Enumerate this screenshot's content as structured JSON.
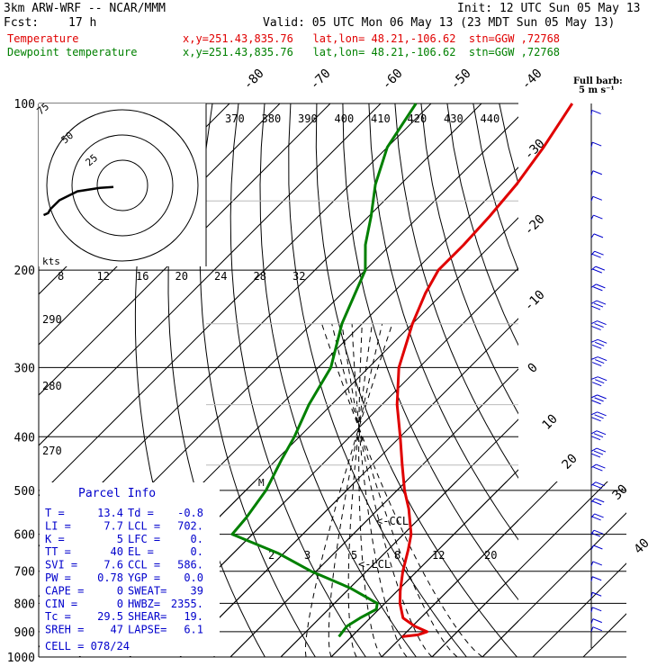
{
  "header": {
    "model": "3km ARW-WRF -- NCAR/MMM",
    "init": "Init: 12 UTC Sun 05 May 13",
    "fcst_label": "Fcst:",
    "fcst_value": "17 h",
    "valid": "Valid: 05 UTC Mon 06 May 13 (23 MDT Sun 05 May 13)",
    "temperature_label": "Temperature",
    "dewpoint_label": "Dewpoint temperature",
    "temperature_loc": "x,y=251.43,835.76   lat,lon= 48.21,-106.62  stn=GGW ,72768",
    "dewpoint_loc": "x,y=251.43,835.76   lat,lon= 48.21,-106.62  stn=GGW ,72768"
  },
  "colors": {
    "temperature": "#e00000",
    "dewpoint": "#008000",
    "parcel_text": "#0000cc",
    "grid": "#000000"
  },
  "wind_legend": {
    "title": "Full barb:",
    "value": "5 m s⁻¹"
  },
  "hodograph": {
    "rings": [
      "25",
      "50",
      "75"
    ],
    "units": "kts",
    "trace": [
      [
        8,
        -3
      ],
      [
        20,
        -5
      ],
      [
        40,
        -12
      ],
      [
        56,
        -30
      ],
      [
        64,
        -48
      ],
      [
        66,
        -56
      ],
      [
        70,
        -60
      ]
    ]
  },
  "parcel_info": {
    "title": "Parcel Info",
    "rows": [
      [
        "T   =",
        "13.4",
        "Td =",
        "-0.8"
      ],
      [
        "LI  =",
        "7.7",
        "LCL =",
        "702."
      ],
      [
        "K   =",
        "5",
        "LFC =",
        "0."
      ],
      [
        "TT  =",
        "40",
        "EL  =",
        "0."
      ],
      [
        "SVI =",
        "7.6",
        "CCL =",
        "586."
      ],
      [
        "PW  =",
        "0.78",
        "YGP =",
        "0.0"
      ],
      [
        "CAPE =",
        "0",
        "SWEAT=",
        "39"
      ],
      [
        "CIN  =",
        "0",
        "HWBZ=",
        "2355."
      ],
      [
        "Tc  =",
        "29.5",
        "SHEAR=",
        "19."
      ],
      [
        "SREH =",
        "47",
        "LAPSE=",
        "6.1"
      ]
    ],
    "cell": "CELL = 078/24"
  },
  "annotations": {
    "ccl": "<-CCL",
    "lcl": "<-LCL",
    "marker": "M"
  },
  "chart_data": {
    "type": "line",
    "y_axis": "Pressure (hPa)",
    "y_scale": "log",
    "ylim": [
      1000,
      100
    ],
    "pressure_levels": [
      "100",
      "200",
      "300",
      "400",
      "500",
      "600",
      "700",
      "800",
      "900",
      "1000"
    ],
    "isotherm_labels": [
      "-80",
      "-70",
      "-60",
      "-50",
      "-40",
      "-30",
      "-20",
      "-10",
      "0",
      "10",
      "20",
      "30",
      "40"
    ],
    "theta_labels": [
      "370",
      "380",
      "390",
      "400",
      "410",
      "420",
      "430",
      "440"
    ],
    "theta_labels_lower": [
      "290",
      "280",
      "270"
    ],
    "mixing_ratio_labels": [
      "8",
      "12",
      "16",
      "20",
      "24",
      "28",
      "32"
    ],
    "mixing_ratio_labels_low": [
      "2",
      "3",
      "5",
      "8",
      "12",
      "20"
    ],
    "series": [
      {
        "name": "Temperature",
        "points": [
          [
            919,
            10.0
          ],
          [
            912,
            12.8
          ],
          [
            900,
            14.0
          ],
          [
            880,
            10.5
          ],
          [
            850,
            6.5
          ],
          [
            800,
            3.0
          ],
          [
            760,
            0.6
          ],
          [
            700,
            -2.8
          ],
          [
            640,
            -6.0
          ],
          [
            600,
            -8.5
          ],
          [
            540,
            -14.0
          ],
          [
            500,
            -18.5
          ],
          [
            450,
            -24.0
          ],
          [
            400,
            -30.0
          ],
          [
            350,
            -37.0
          ],
          [
            300,
            -44.0
          ],
          [
            250,
            -50.0
          ],
          [
            220,
            -53.5
          ],
          [
            200,
            -55.5
          ],
          [
            180,
            -55.5
          ],
          [
            160,
            -56.0
          ],
          [
            140,
            -57.0
          ],
          [
            120,
            -59.0
          ],
          [
            100,
            -62.0
          ]
        ]
      },
      {
        "name": "Dewpoint temperature",
        "points": [
          [
            919,
            -2.5
          ],
          [
            880,
            -3.0
          ],
          [
            850,
            -2.0
          ],
          [
            820,
            -0.5
          ],
          [
            800,
            -1.5
          ],
          [
            750,
            -10.0
          ],
          [
            700,
            -21.0
          ],
          [
            650,
            -31.0
          ],
          [
            600,
            -44.0
          ],
          [
            560,
            -44.5
          ],
          [
            500,
            -46.0
          ],
          [
            440,
            -49.0
          ],
          [
            400,
            -51.0
          ],
          [
            350,
            -54.5
          ],
          [
            300,
            -57.5
          ],
          [
            250,
            -64.0
          ],
          [
            200,
            -70.0
          ],
          [
            180,
            -75.0
          ],
          [
            160,
            -79.5
          ],
          [
            140,
            -85.0
          ],
          [
            120,
            -90.0
          ],
          [
            100,
            -93.0
          ]
        ]
      }
    ],
    "wind_barbs": [
      {
        "p": 105,
        "u": 1,
        "v": 2
      },
      {
        "p": 120,
        "u": 2,
        "v": 2
      },
      {
        "p": 135,
        "u": 3,
        "v": 3
      },
      {
        "p": 150,
        "u": 3,
        "v": 5
      },
      {
        "p": 162,
        "u": 4,
        "v": 6
      },
      {
        "p": 175,
        "u": 5,
        "v": 7
      },
      {
        "p": 188,
        "u": 6,
        "v": 8
      },
      {
        "p": 200,
        "u": 8,
        "v": 10
      },
      {
        "p": 215,
        "u": 9,
        "v": 12
      },
      {
        "p": 230,
        "u": 10,
        "v": 13
      },
      {
        "p": 250,
        "u": 11,
        "v": 14
      },
      {
        "p": 270,
        "u": 12,
        "v": 15
      },
      {
        "p": 290,
        "u": 12,
        "v": 16
      },
      {
        "p": 315,
        "u": 12,
        "v": 16
      },
      {
        "p": 340,
        "u": 11,
        "v": 15
      },
      {
        "p": 365,
        "u": 11,
        "v": 15
      },
      {
        "p": 395,
        "u": 10,
        "v": 14
      },
      {
        "p": 425,
        "u": 10,
        "v": 13
      },
      {
        "p": 455,
        "u": 9,
        "v": 12
      },
      {
        "p": 490,
        "u": 8,
        "v": 11
      },
      {
        "p": 525,
        "u": 7,
        "v": 10
      },
      {
        "p": 560,
        "u": 6,
        "v": 9
      },
      {
        "p": 600,
        "u": 5,
        "v": 8
      },
      {
        "p": 640,
        "u": 4,
        "v": 6
      },
      {
        "p": 685,
        "u": 3,
        "v": 5
      },
      {
        "p": 730,
        "u": 2,
        "v": 4
      },
      {
        "p": 780,
        "u": 2,
        "v": 3
      },
      {
        "p": 830,
        "u": 2,
        "v": 3
      },
      {
        "p": 870,
        "u": 3,
        "v": 4
      },
      {
        "p": 900,
        "u": 3,
        "v": 4
      }
    ]
  }
}
